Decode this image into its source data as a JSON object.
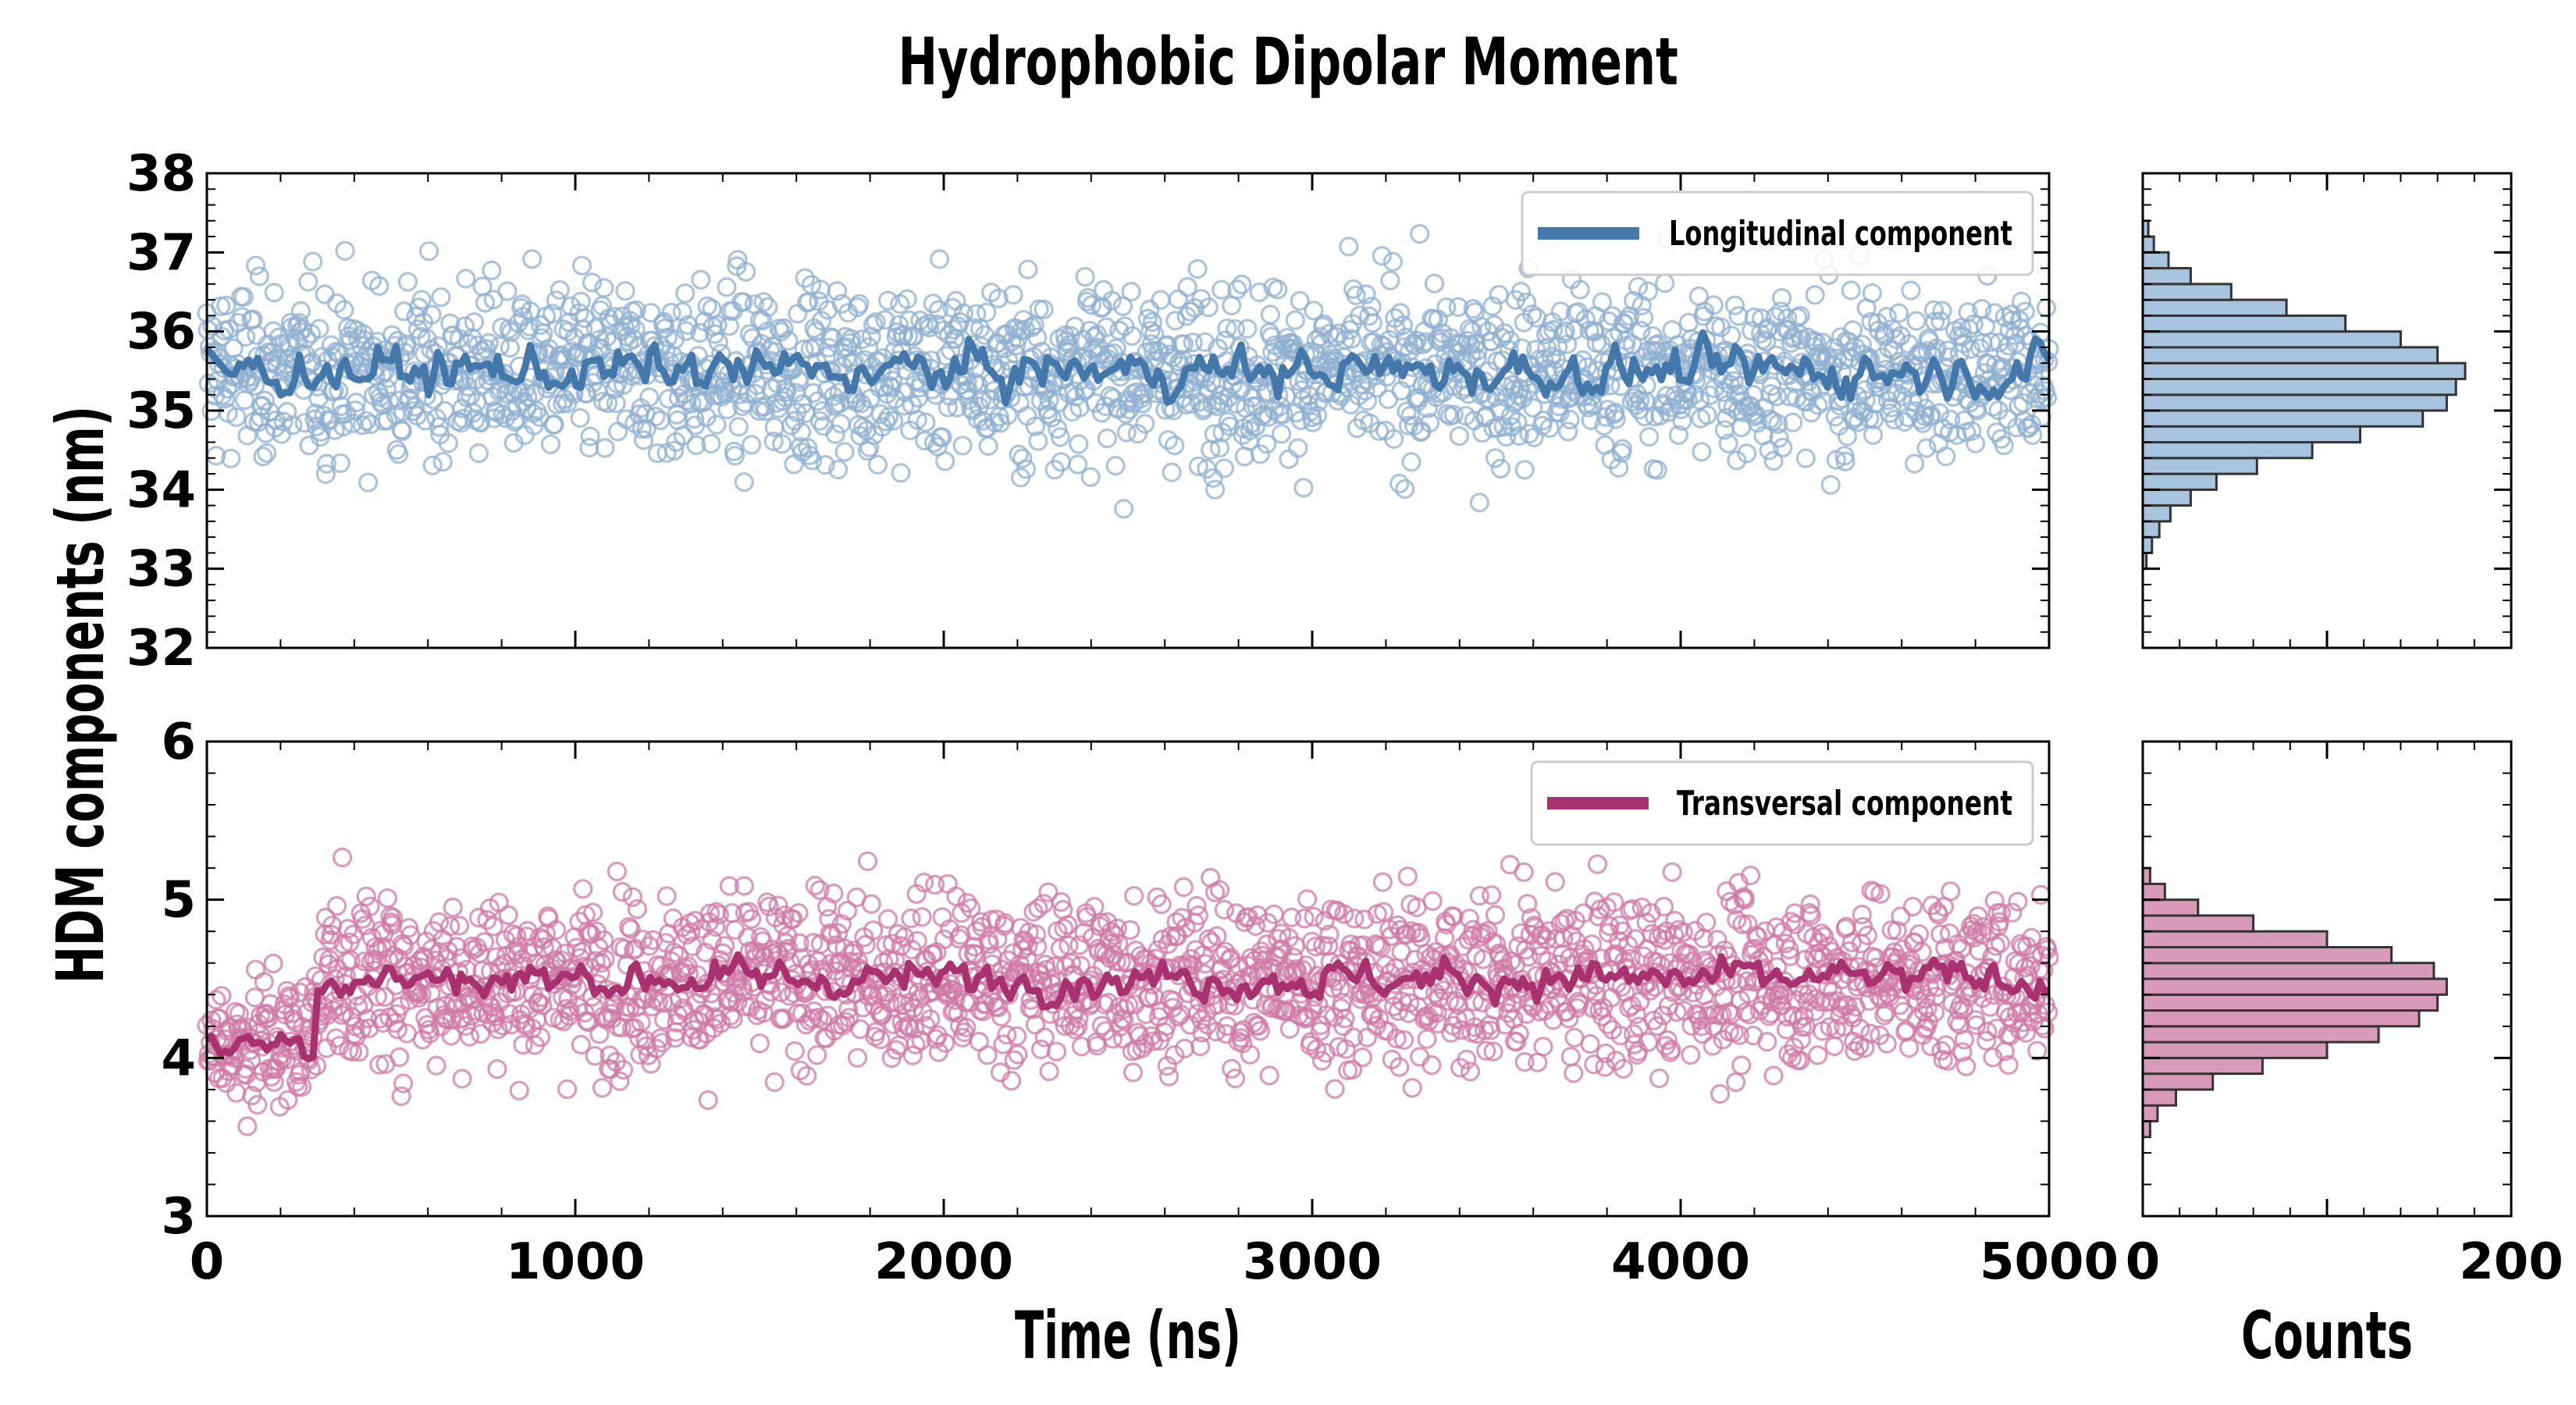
{
  "title": "Hydrophobic Dipolar Moment",
  "chart_data": {
    "type": "scatter",
    "title": "Hydrophobic Dipolar Moment",
    "ylabel": "HDM components (nm)",
    "xlabel": "Time (ns)",
    "hist_xlabel": "Counts",
    "x_range": [
      0,
      5000
    ],
    "x_ticks": [
      "0",
      "1000",
      "2000",
      "3000",
      "4000",
      "5000"
    ],
    "hist_range": [
      0,
      200
    ],
    "hist_ticks": [
      "0",
      "200"
    ],
    "panels": [
      {
        "id": "longitudinal",
        "legend": "Longitudinal component",
        "legend_position": "top-right",
        "color": "#4477aa",
        "marker_color": "#8fb0d0",
        "hist_fill": "#a9c4de",
        "ylim": [
          32,
          38
        ],
        "y_ticks": [
          "32",
          "33",
          "34",
          "35",
          "36",
          "37",
          "38"
        ],
        "points": 2000,
        "scatter_mean": 35.5,
        "scatter_sd": 0.55,
        "running_mean": 35.5,
        "running_amplitude": 0.3,
        "histogram": {
          "bin_centers": [
            33.1,
            33.3,
            33.5,
            33.7,
            33.9,
            34.1,
            34.3,
            34.5,
            34.7,
            34.9,
            35.1,
            35.3,
            35.5,
            35.7,
            35.9,
            36.1,
            36.3,
            36.5,
            36.7,
            36.9,
            37.1,
            37.3
          ],
          "counts": [
            2,
            5,
            9,
            15,
            26,
            40,
            62,
            92,
            118,
            152,
            165,
            170,
            175,
            160,
            140,
            110,
            78,
            48,
            26,
            14,
            6,
            3
          ]
        }
      },
      {
        "id": "transversal",
        "legend": "Transversal component",
        "legend_position": "top-right",
        "color": "#a83270",
        "marker_color": "#cf7aa5",
        "hist_fill": "#d99ab8",
        "ylim": [
          3,
          6
        ],
        "y_ticks": [
          "3",
          "4",
          "5",
          "6"
        ],
        "points": 2000,
        "initial_segment": {
          "x_end": 290,
          "mean": 4.1
        },
        "scatter_mean": 4.5,
        "scatter_sd": 0.27,
        "running_mean": 4.5,
        "running_amplitude": 0.12,
        "histogram": {
          "bin_centers": [
            3.55,
            3.65,
            3.75,
            3.85,
            3.95,
            4.05,
            4.15,
            4.25,
            4.35,
            4.45,
            4.55,
            4.65,
            4.75,
            4.85,
            4.95,
            5.05,
            5.15
          ],
          "counts": [
            4,
            8,
            18,
            38,
            65,
            100,
            128,
            150,
            160,
            165,
            158,
            135,
            100,
            60,
            30,
            12,
            4
          ]
        }
      }
    ]
  }
}
